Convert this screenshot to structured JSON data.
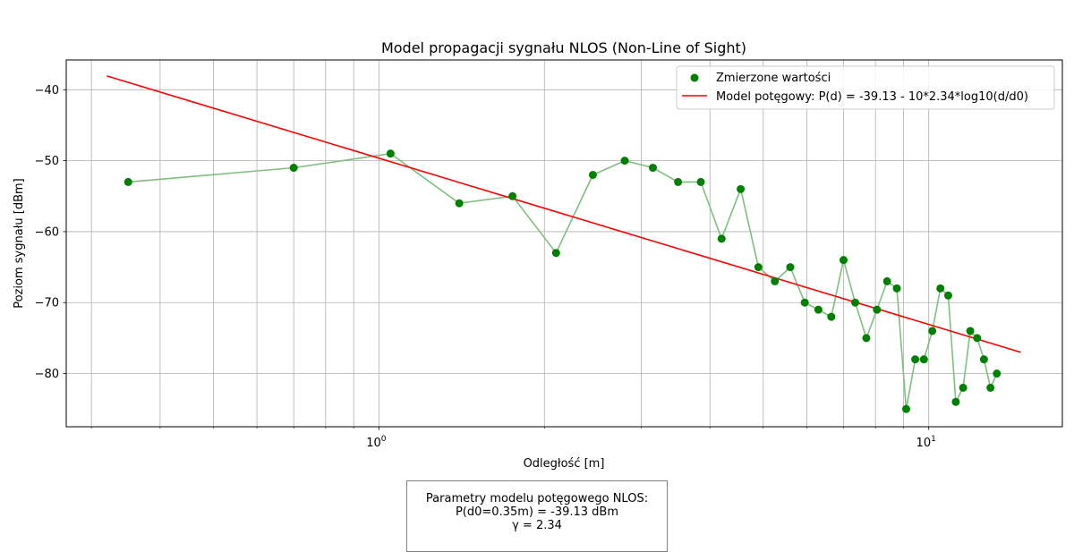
{
  "chart_data": {
    "type": "scatter",
    "title": "Model propagacji sygnału NLOS (Non-Line of Sight)",
    "xlabel": "Odległość [m]",
    "ylabel": "Poziom sygnału [dBm]",
    "xscale": "log",
    "xlim": [
      0.27,
      17.5
    ],
    "ylim": [
      -87.5,
      -35.8
    ],
    "grid": true,
    "legend_position": "top-right",
    "y_ticks": [
      -40,
      -50,
      -60,
      -70,
      -80
    ],
    "y_tick_labels": [
      "−40",
      "−50",
      "−60",
      "−70",
      "−80"
    ],
    "x_ticks_major": [
      1,
      10
    ],
    "x_tick_labels": [
      {
        "base": "10",
        "exp": "0"
      },
      {
        "base": "10",
        "exp": "1"
      }
    ],
    "series": [
      {
        "name": "Zmierzone wartości",
        "kind": "scatter",
        "color": "#008000",
        "line_color": "#7fbf7f",
        "x": [
          0.35,
          0.7,
          1.05,
          1.4,
          1.75,
          2.1,
          2.45,
          2.8,
          3.15,
          3.5,
          3.85,
          4.2,
          4.55,
          4.9,
          5.25,
          5.6,
          5.95,
          6.3,
          6.65,
          7.0,
          7.35,
          7.7,
          8.05,
          8.4,
          8.75,
          9.1,
          9.45,
          9.8,
          10.15,
          10.5,
          10.85,
          11.2,
          11.55,
          11.9,
          12.25,
          12.6,
          12.95,
          13.3
        ],
        "y": [
          -53,
          -51,
          -49,
          -56,
          -55,
          -63,
          -52,
          -50,
          -51,
          -53,
          -53,
          -61,
          -54,
          -65,
          -67,
          -65,
          -70,
          -71,
          -72,
          -64,
          -70,
          -75,
          -71,
          -67,
          -68,
          -85,
          -78,
          -78,
          -74,
          -68,
          -69,
          -84,
          -82,
          -74,
          -75,
          -78,
          -82,
          -80
        ]
      },
      {
        "name": "Model potęgowy: P(d) = -39.13 - 10*2.34*log10(d/d0)",
        "kind": "line",
        "color": "#ff0000",
        "x": [
          0.32,
          14.7
        ],
        "y": [
          -38.05,
          -77.0
        ]
      }
    ]
  },
  "param_box": {
    "line1": "Parametry modelu potęgowego NLOS:",
    "line2": "P(d0=0.35m) = -39.13 dBm",
    "line3": "γ = 2.34"
  }
}
